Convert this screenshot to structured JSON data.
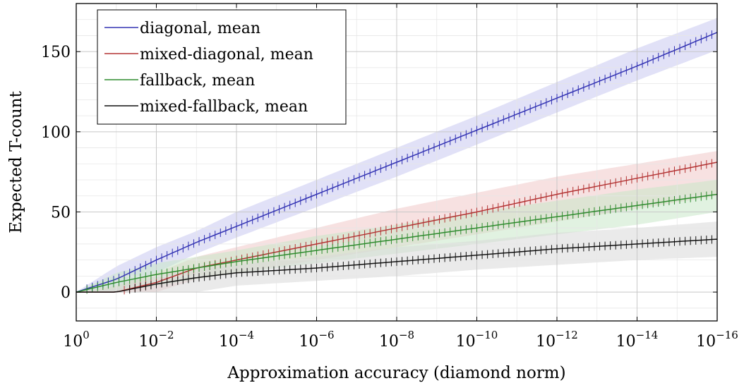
{
  "chart_data": {
    "type": "line",
    "title": "",
    "xlabel": "Approximation accuracy (diamond norm)",
    "ylabel": "Expected T-count",
    "x_scale": "log",
    "x_direction": "decreasing",
    "xlim": [
      1,
      1e-16
    ],
    "ylim": [
      -18,
      180
    ],
    "x_ticks": [
      {
        "base": "10",
        "exp": "0"
      },
      {
        "base": "10",
        "exp": "−2"
      },
      {
        "base": "10",
        "exp": "−4"
      },
      {
        "base": "10",
        "exp": "−6"
      },
      {
        "base": "10",
        "exp": "−8"
      },
      {
        "base": "10",
        "exp": "−10"
      },
      {
        "base": "10",
        "exp": "−12"
      },
      {
        "base": "10",
        "exp": "−14"
      },
      {
        "base": "10",
        "exp": "−16"
      }
    ],
    "x_tick_values": [
      1,
      0.01,
      0.0001,
      1e-06,
      1e-08,
      1e-10,
      1e-12,
      1e-14,
      1e-16
    ],
    "y_ticks": [
      0,
      50,
      100,
      150
    ],
    "grid": true,
    "legend_position": "top-left",
    "series": [
      {
        "name": "diagonal, mean",
        "color": "#3333b3",
        "band_color": "#c8c8f0",
        "x": [
          1,
          0.1,
          0.01,
          0.001,
          0.0001,
          1e-06,
          1e-08,
          1e-10,
          1e-12,
          1e-14,
          1e-16
        ],
        "y": [
          0,
          8,
          20,
          31,
          41,
          61,
          81,
          101,
          121,
          141,
          162
        ],
        "y_low": [
          0,
          0,
          12,
          24,
          34,
          53,
          72,
          92,
          112,
          132,
          151
        ],
        "y_high": [
          0,
          16,
          28,
          38,
          50,
          70,
          90,
          110,
          131,
          152,
          171
        ]
      },
      {
        "name": "mixed-diagonal, mean",
        "color": "#b33333",
        "band_color": "#f0c8c8",
        "x": [
          1,
          0.1,
          0.01,
          0.001,
          0.0001,
          1e-06,
          1e-08,
          1e-10,
          1e-12,
          1e-14,
          1e-16
        ],
        "y": [
          0,
          0,
          6,
          15,
          20,
          30,
          40,
          50,
          61,
          71,
          81
        ],
        "y_low": [
          0,
          0,
          0,
          8,
          12,
          20,
          28,
          36,
          44,
          52,
          60
        ],
        "y_high": [
          0,
          4,
          12,
          22,
          28,
          40,
          52,
          62,
          72,
          80,
          88
        ]
      },
      {
        "name": "fallback, mean",
        "color": "#2e8b2e",
        "band_color": "#c8e8c8",
        "x": [
          1,
          0.1,
          0.01,
          0.001,
          0.0001,
          1e-06,
          1e-08,
          1e-10,
          1e-12,
          1e-14,
          1e-16
        ],
        "y": [
          0,
          6,
          11,
          15,
          19,
          26,
          33,
          40,
          47,
          54,
          61
        ],
        "y_low": [
          0,
          0,
          4,
          8,
          12,
          18,
          24,
          30,
          36,
          42,
          50
        ],
        "y_high": [
          0,
          12,
          18,
          22,
          26,
          35,
          42,
          50,
          57,
          64,
          70
        ]
      },
      {
        "name": "mixed-fallback, mean",
        "color": "#111111",
        "band_color": "#d9d9d9",
        "x": [
          1,
          0.1,
          0.01,
          0.001,
          0.0001,
          1e-06,
          1e-08,
          1e-10,
          1e-12,
          1e-14,
          1e-16
        ],
        "y": [
          0,
          0,
          5,
          9,
          12,
          15,
          19,
          23,
          27,
          30,
          33
        ],
        "y_low": [
          0,
          0,
          0,
          0,
          4,
          7,
          10,
          14,
          17,
          20,
          22
        ],
        "y_high": [
          0,
          2,
          10,
          14,
          17,
          22,
          28,
          32,
          37,
          40,
          44
        ]
      }
    ]
  }
}
